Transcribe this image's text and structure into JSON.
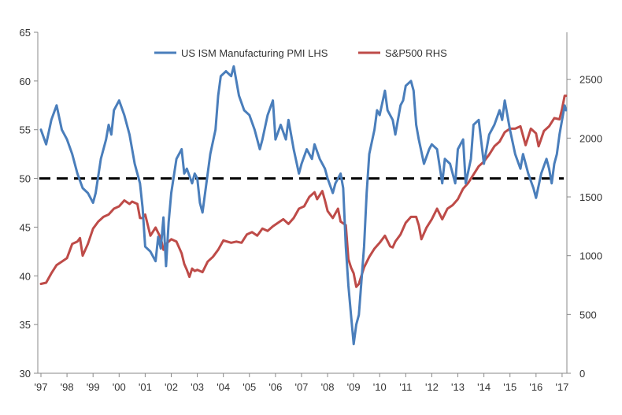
{
  "chart_data": {
    "type": "line",
    "title": "",
    "xlabel": "",
    "ylabel_left": "",
    "ylabel_right": "",
    "x_ticks": [
      "'97",
      "'98",
      "'99",
      "'00",
      "'01",
      "'02",
      "'03",
      "'04",
      "'05",
      "'06",
      "'07",
      "'08",
      "'09",
      "'10",
      "'11",
      "'12",
      "'13",
      "'14",
      "'15",
      "'16",
      "'17"
    ],
    "x_range": [
      1997.0,
      2017.0
    ],
    "y_left": {
      "range": [
        30,
        65
      ],
      "ticks": [
        30,
        35,
        40,
        45,
        50,
        55,
        60,
        65
      ]
    },
    "y_right": {
      "range": [
        0,
        2900
      ],
      "ticks": [
        0,
        500,
        1000,
        1500,
        2000,
        2500
      ]
    },
    "reference_line": {
      "axis": "left",
      "value": 50,
      "style": "dashed",
      "color": "#000000"
    },
    "legend_position": "top-center",
    "grid": false,
    "series": [
      {
        "name": "US ISM Manufacturing PMI LHS",
        "axis": "left",
        "color": "#4a7ebb",
        "points": [
          [
            1997.0,
            55
          ],
          [
            1997.2,
            53.5
          ],
          [
            1997.4,
            56
          ],
          [
            1997.6,
            57.5
          ],
          [
            1997.8,
            55
          ],
          [
            1998.0,
            54
          ],
          [
            1998.2,
            52.5
          ],
          [
            1998.4,
            50.5
          ],
          [
            1998.6,
            49
          ],
          [
            1998.8,
            48.5
          ],
          [
            1999.0,
            47.5
          ],
          [
            1999.1,
            48.5
          ],
          [
            1999.3,
            52
          ],
          [
            1999.5,
            54
          ],
          [
            1999.6,
            55.5
          ],
          [
            1999.7,
            54.5
          ],
          [
            1999.8,
            57
          ],
          [
            2000.0,
            58
          ],
          [
            2000.2,
            56.5
          ],
          [
            2000.4,
            54.5
          ],
          [
            2000.6,
            51.5
          ],
          [
            2000.8,
            49.5
          ],
          [
            2000.9,
            47
          ],
          [
            2001.0,
            43
          ],
          [
            2001.2,
            42.5
          ],
          [
            2001.4,
            41.5
          ],
          [
            2001.5,
            44
          ],
          [
            2001.6,
            42.8
          ],
          [
            2001.7,
            46
          ],
          [
            2001.8,
            41
          ],
          [
            2001.9,
            45.5
          ],
          [
            2002.0,
            48.5
          ],
          [
            2002.2,
            52
          ],
          [
            2002.4,
            53
          ],
          [
            2002.5,
            50.5
          ],
          [
            2002.6,
            51
          ],
          [
            2002.8,
            49.5
          ],
          [
            2002.9,
            50.5
          ],
          [
            2003.0,
            50
          ],
          [
            2003.1,
            47.5
          ],
          [
            2003.2,
            46.5
          ],
          [
            2003.3,
            48.5
          ],
          [
            2003.5,
            52.5
          ],
          [
            2003.7,
            55
          ],
          [
            2003.8,
            58.5
          ],
          [
            2003.9,
            60.5
          ],
          [
            2004.1,
            61
          ],
          [
            2004.3,
            60.5
          ],
          [
            2004.4,
            61.5
          ],
          [
            2004.6,
            58.5
          ],
          [
            2004.8,
            57
          ],
          [
            2005.0,
            56.5
          ],
          [
            2005.2,
            55
          ],
          [
            2005.4,
            53
          ],
          [
            2005.5,
            54
          ],
          [
            2005.7,
            56.5
          ],
          [
            2005.9,
            58
          ],
          [
            2006.0,
            54
          ],
          [
            2006.2,
            55.5
          ],
          [
            2006.4,
            54
          ],
          [
            2006.5,
            56
          ],
          [
            2006.7,
            53
          ],
          [
            2006.9,
            50.5
          ],
          [
            2007.0,
            51.5
          ],
          [
            2007.2,
            53
          ],
          [
            2007.4,
            52
          ],
          [
            2007.5,
            53.5
          ],
          [
            2007.7,
            52
          ],
          [
            2007.9,
            51
          ],
          [
            2008.0,
            50
          ],
          [
            2008.2,
            48.5
          ],
          [
            2008.3,
            49.5
          ],
          [
            2008.5,
            50.5
          ],
          [
            2008.6,
            49
          ],
          [
            2008.7,
            43
          ],
          [
            2008.8,
            39
          ],
          [
            2008.9,
            36
          ],
          [
            2009.0,
            33
          ],
          [
            2009.1,
            35
          ],
          [
            2009.2,
            36
          ],
          [
            2009.4,
            43
          ],
          [
            2009.5,
            48.5
          ],
          [
            2009.6,
            52.5
          ],
          [
            2009.8,
            55
          ],
          [
            2009.9,
            57
          ],
          [
            2010.0,
            56.5
          ],
          [
            2010.2,
            59
          ],
          [
            2010.3,
            57
          ],
          [
            2010.5,
            56
          ],
          [
            2010.6,
            54.5
          ],
          [
            2010.8,
            57.5
          ],
          [
            2010.9,
            58
          ],
          [
            2011.0,
            59.5
          ],
          [
            2011.2,
            60
          ],
          [
            2011.3,
            59
          ],
          [
            2011.4,
            55.5
          ],
          [
            2011.5,
            54
          ],
          [
            2011.7,
            51.5
          ],
          [
            2011.9,
            53
          ],
          [
            2012.0,
            53.5
          ],
          [
            2012.2,
            53
          ],
          [
            2012.4,
            49.5
          ],
          [
            2012.5,
            52
          ],
          [
            2012.7,
            51.5
          ],
          [
            2012.9,
            49.5
          ],
          [
            2013.0,
            53
          ],
          [
            2013.2,
            54
          ],
          [
            2013.3,
            49.5
          ],
          [
            2013.5,
            52
          ],
          [
            2013.6,
            55.5
          ],
          [
            2013.8,
            56
          ],
          [
            2014.0,
            51.5
          ],
          [
            2014.2,
            54.5
          ],
          [
            2014.4,
            55.5
          ],
          [
            2014.6,
            57
          ],
          [
            2014.7,
            56
          ],
          [
            2014.8,
            58
          ],
          [
            2015.0,
            55
          ],
          [
            2015.2,
            52.5
          ],
          [
            2015.4,
            51
          ],
          [
            2015.5,
            52.5
          ],
          [
            2015.7,
            50.5
          ],
          [
            2015.9,
            49
          ],
          [
            2016.0,
            48
          ],
          [
            2016.2,
            50.5
          ],
          [
            2016.4,
            52
          ],
          [
            2016.5,
            51
          ],
          [
            2016.6,
            49.5
          ],
          [
            2016.7,
            51.5
          ],
          [
            2016.8,
            52.5
          ],
          [
            2016.9,
            54.5
          ],
          [
            2017.0,
            56
          ],
          [
            2017.1,
            57.5
          ],
          [
            2017.15,
            57
          ]
        ]
      },
      {
        "name": "S&P500 RHS",
        "axis": "right",
        "color": "#be4b48",
        "points": [
          [
            1997.0,
            760
          ],
          [
            1997.2,
            770
          ],
          [
            1997.4,
            850
          ],
          [
            1997.6,
            920
          ],
          [
            1997.8,
            950
          ],
          [
            1998.0,
            980
          ],
          [
            1998.2,
            1100
          ],
          [
            1998.4,
            1120
          ],
          [
            1998.5,
            1150
          ],
          [
            1998.6,
            1000
          ],
          [
            1998.8,
            1100
          ],
          [
            1999.0,
            1230
          ],
          [
            1999.2,
            1290
          ],
          [
            1999.4,
            1330
          ],
          [
            1999.6,
            1350
          ],
          [
            1999.8,
            1400
          ],
          [
            2000.0,
            1420
          ],
          [
            2000.2,
            1470
          ],
          [
            2000.4,
            1440
          ],
          [
            2000.5,
            1460
          ],
          [
            2000.7,
            1440
          ],
          [
            2000.8,
            1320
          ],
          [
            2000.9,
            1320
          ],
          [
            2001.0,
            1350
          ],
          [
            2001.2,
            1170
          ],
          [
            2001.4,
            1240
          ],
          [
            2001.6,
            1150
          ],
          [
            2001.7,
            1050
          ],
          [
            2001.8,
            1100
          ],
          [
            2002.0,
            1140
          ],
          [
            2002.2,
            1120
          ],
          [
            2002.4,
            1020
          ],
          [
            2002.5,
            930
          ],
          [
            2002.6,
            880
          ],
          [
            2002.7,
            820
          ],
          [
            2002.8,
            890
          ],
          [
            2002.9,
            870
          ],
          [
            2003.0,
            880
          ],
          [
            2003.2,
            860
          ],
          [
            2003.4,
            950
          ],
          [
            2003.6,
            990
          ],
          [
            2003.8,
            1050
          ],
          [
            2004.0,
            1130
          ],
          [
            2004.3,
            1110
          ],
          [
            2004.5,
            1120
          ],
          [
            2004.7,
            1110
          ],
          [
            2004.9,
            1180
          ],
          [
            2005.1,
            1200
          ],
          [
            2005.3,
            1170
          ],
          [
            2005.5,
            1230
          ],
          [
            2005.7,
            1210
          ],
          [
            2005.9,
            1250
          ],
          [
            2006.1,
            1280
          ],
          [
            2006.3,
            1310
          ],
          [
            2006.5,
            1270
          ],
          [
            2006.7,
            1320
          ],
          [
            2006.9,
            1400
          ],
          [
            2007.1,
            1420
          ],
          [
            2007.3,
            1500
          ],
          [
            2007.5,
            1540
          ],
          [
            2007.6,
            1480
          ],
          [
            2007.8,
            1550
          ],
          [
            2007.9,
            1470
          ],
          [
            2008.0,
            1380
          ],
          [
            2008.2,
            1320
          ],
          [
            2008.4,
            1400
          ],
          [
            2008.5,
            1290
          ],
          [
            2008.7,
            1260
          ],
          [
            2008.8,
            970
          ],
          [
            2008.9,
            900
          ],
          [
            2009.0,
            850
          ],
          [
            2009.1,
            735
          ],
          [
            2009.2,
            760
          ],
          [
            2009.4,
            900
          ],
          [
            2009.6,
            990
          ],
          [
            2009.8,
            1060
          ],
          [
            2010.0,
            1110
          ],
          [
            2010.2,
            1170
          ],
          [
            2010.4,
            1080
          ],
          [
            2010.5,
            1070
          ],
          [
            2010.6,
            1120
          ],
          [
            2010.8,
            1180
          ],
          [
            2011.0,
            1280
          ],
          [
            2011.2,
            1330
          ],
          [
            2011.4,
            1330
          ],
          [
            2011.5,
            1260
          ],
          [
            2011.6,
            1140
          ],
          [
            2011.8,
            1240
          ],
          [
            2012.0,
            1310
          ],
          [
            2012.2,
            1400
          ],
          [
            2012.4,
            1310
          ],
          [
            2012.6,
            1400
          ],
          [
            2012.8,
            1430
          ],
          [
            2013.0,
            1480
          ],
          [
            2013.2,
            1570
          ],
          [
            2013.4,
            1620
          ],
          [
            2013.6,
            1690
          ],
          [
            2013.8,
            1760
          ],
          [
            2014.0,
            1800
          ],
          [
            2014.2,
            1860
          ],
          [
            2014.4,
            1930
          ],
          [
            2014.6,
            1970
          ],
          [
            2014.8,
            2050
          ],
          [
            2015.0,
            2080
          ],
          [
            2015.2,
            2080
          ],
          [
            2015.4,
            2100
          ],
          [
            2015.6,
            1940
          ],
          [
            2015.8,
            2080
          ],
          [
            2016.0,
            2040
          ],
          [
            2016.1,
            1930
          ],
          [
            2016.3,
            2060
          ],
          [
            2016.5,
            2100
          ],
          [
            2016.7,
            2170
          ],
          [
            2016.9,
            2160
          ],
          [
            2017.0,
            2250
          ],
          [
            2017.1,
            2360
          ],
          [
            2017.15,
            2360
          ]
        ]
      }
    ]
  }
}
